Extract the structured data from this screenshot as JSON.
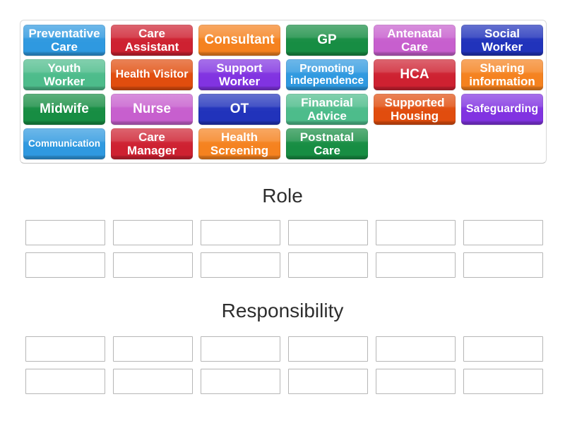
{
  "tray": {
    "tiles": [
      {
        "label": "Preventative\nCare",
        "color": "#2f99e0"
      },
      {
        "label": "Care\nAssistant",
        "color": "#ce2131"
      },
      {
        "label": "Consultant",
        "color": "#f5821f"
      },
      {
        "label": "GP",
        "color": "#178d43"
      },
      {
        "label": "Antenatal\nCare",
        "color": "#c75fce"
      },
      {
        "label": "Social\nWorker",
        "color": "#2133bb"
      },
      {
        "label": "Youth\nWorker",
        "color": "#4dbc8b"
      },
      {
        "label": "Health Visitor",
        "color": "#e14d0e"
      },
      {
        "label": "Support\nWorker",
        "color": "#8133e1"
      },
      {
        "label": "Promoting\nindependence",
        "color": "#2f99e0"
      },
      {
        "label": "HCA",
        "color": "#ce2131"
      },
      {
        "label": "Sharing\ninformation",
        "color": "#f5821f"
      },
      {
        "label": "Midwife",
        "color": "#178d43"
      },
      {
        "label": "Nurse",
        "color": "#c75fce"
      },
      {
        "label": "OT",
        "color": "#2133bb"
      },
      {
        "label": "Financial\nAdvice",
        "color": "#4dbc8b"
      },
      {
        "label": "Supported\nHousing",
        "color": "#e14d0e"
      },
      {
        "label": "Safeguarding",
        "color": "#8133e1"
      },
      {
        "label": "Communication",
        "color": "#2f99e0"
      },
      {
        "label": "Care\nManager",
        "color": "#ce2131"
      },
      {
        "label": "Health\nScreening",
        "color": "#f5821f"
      },
      {
        "label": "Postnatal\nCare",
        "color": "#178d43"
      }
    ]
  },
  "groups": [
    {
      "title": "Role",
      "slot_count": 12
    },
    {
      "title": "Responsibility",
      "slot_count": 12
    }
  ],
  "theme": {
    "page_background": "#ffffff",
    "tile_text_color": "#ffffff",
    "heading_color": "#2e2e2e",
    "slot_border_color": "#b6b6b6",
    "slot_fill": "#ffffff",
    "tray_border_color": "#d8d8d8",
    "tray_fill": "#ffffff"
  }
}
